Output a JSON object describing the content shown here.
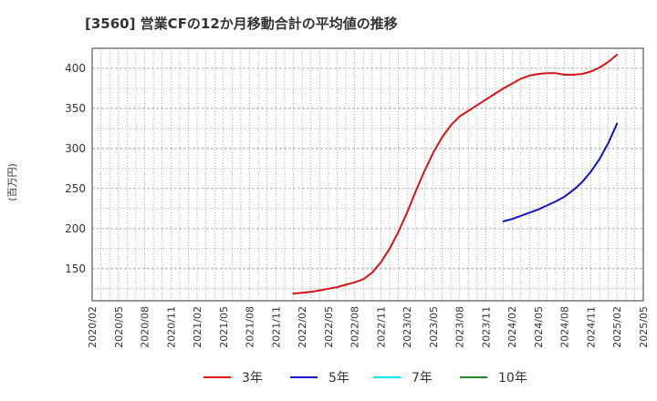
{
  "chart_data": {
    "type": "line",
    "title": "[3560]  営業CFの12か月移動合計の平均値の推移",
    "ylabel": "(百万円)",
    "xlabel": "",
    "ylim": [
      110,
      425
    ],
    "y_ticks": [
      150,
      200,
      250,
      300,
      350,
      400
    ],
    "x_range": [
      "2020-02",
      "2025-05"
    ],
    "x_ticks": [
      "2020/02",
      "2020/05",
      "2020/08",
      "2020/11",
      "2021/02",
      "2021/05",
      "2021/08",
      "2021/11",
      "2022/02",
      "2022/05",
      "2022/08",
      "2022/11",
      "2023/02",
      "2023/05",
      "2023/08",
      "2023/11",
      "2024/02",
      "2024/05",
      "2024/08",
      "2024/11",
      "2025/02",
      "2025/05"
    ],
    "grid": true,
    "legend_position": "bottom",
    "series": [
      {
        "name": "3年",
        "color": "#dd1111",
        "points": [
          [
            "2022-01",
            119
          ],
          [
            "2022-02",
            120
          ],
          [
            "2022-03",
            121
          ],
          [
            "2022-04",
            123
          ],
          [
            "2022-05",
            125
          ],
          [
            "2022-06",
            127
          ],
          [
            "2022-07",
            130
          ],
          [
            "2022-08",
            133
          ],
          [
            "2022-09",
            137
          ],
          [
            "2022-10",
            145
          ],
          [
            "2022-11",
            158
          ],
          [
            "2022-12",
            175
          ],
          [
            "2023-01",
            196
          ],
          [
            "2023-02",
            220
          ],
          [
            "2023-03",
            247
          ],
          [
            "2023-04",
            272
          ],
          [
            "2023-05",
            295
          ],
          [
            "2023-06",
            314
          ],
          [
            "2023-07",
            329
          ],
          [
            "2023-08",
            340
          ],
          [
            "2023-09",
            347
          ],
          [
            "2023-10",
            354
          ],
          [
            "2023-11",
            361
          ],
          [
            "2023-12",
            368
          ],
          [
            "2024-01",
            375
          ],
          [
            "2024-02",
            381
          ],
          [
            "2024-03",
            387
          ],
          [
            "2024-04",
            391
          ],
          [
            "2024-05",
            393
          ],
          [
            "2024-06",
            394
          ],
          [
            "2024-07",
            394
          ],
          [
            "2024-08",
            392
          ],
          [
            "2024-09",
            392
          ],
          [
            "2024-10",
            393
          ],
          [
            "2024-11",
            396
          ],
          [
            "2024-12",
            401
          ],
          [
            "2025-01",
            408
          ],
          [
            "2025-02",
            417
          ]
        ]
      },
      {
        "name": "5年",
        "color": "#1111cc",
        "points": [
          [
            "2024-01",
            209
          ],
          [
            "2024-02",
            212
          ],
          [
            "2024-03",
            216
          ],
          [
            "2024-04",
            220
          ],
          [
            "2024-05",
            224
          ],
          [
            "2024-06",
            229
          ],
          [
            "2024-07",
            234
          ],
          [
            "2024-08",
            240
          ],
          [
            "2024-09",
            248
          ],
          [
            "2024-10",
            258
          ],
          [
            "2024-11",
            271
          ],
          [
            "2024-12",
            287
          ],
          [
            "2025-01",
            307
          ],
          [
            "2025-02",
            331
          ]
        ]
      },
      {
        "name": "7年",
        "color": "#00e5ee",
        "points": []
      },
      {
        "name": "10年",
        "color": "#228b22",
        "points": []
      }
    ]
  }
}
